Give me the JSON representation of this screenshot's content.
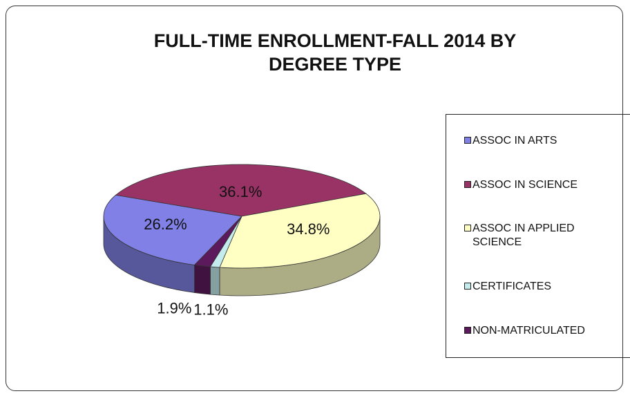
{
  "chart_data": {
    "type": "pie3d",
    "title": "FULL-TIME ENROLLMENT-FALL 2014 BY DEGREE TYPE",
    "categories": [
      "ASSOC IN ARTS",
      "ASSOC IN SCIENCE",
      "ASSOC IN APPLIED SCIENCE",
      "CERTIFICATES",
      "NON-MATRICULATED"
    ],
    "values": [
      26.2,
      36.1,
      34.8,
      1.1,
      1.9
    ],
    "value_labels": [
      "26.2%",
      "36.1%",
      "34.8%",
      "1.1%",
      "1.9%"
    ],
    "colors": [
      "#8080e6",
      "#993366",
      "#ffffc4",
      "#c4ecec",
      "#5c1a5c"
    ],
    "legend": "right"
  }
}
